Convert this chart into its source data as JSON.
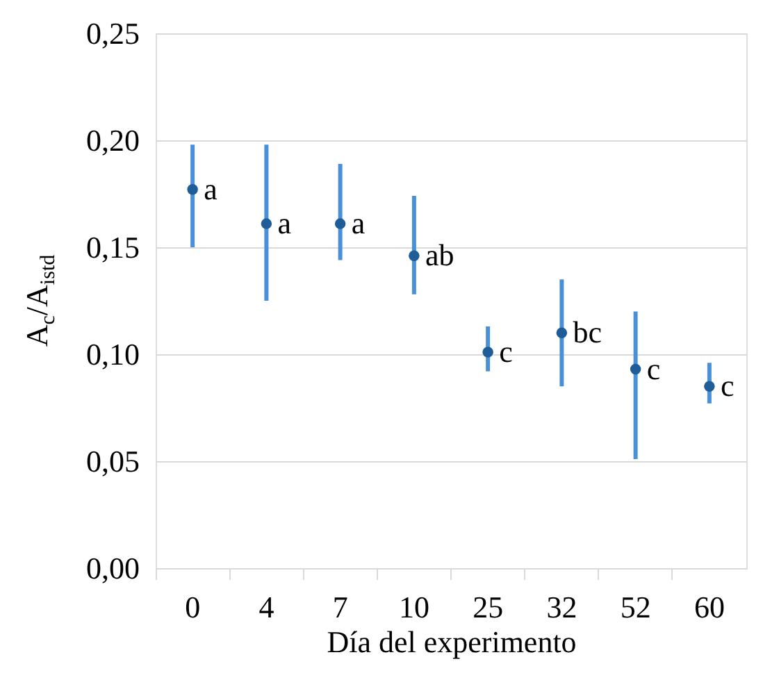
{
  "chart_data": {
    "type": "scatter",
    "xlabel": "Día del experimento",
    "ylabel": "A$_{c}$/A$_{istd}$",
    "categories": [
      "0",
      "4",
      "7",
      "10",
      "25",
      "32",
      "52",
      "60"
    ],
    "series": [
      {
        "color": "#1f5d99",
        "values": [
          0.177,
          0.161,
          0.161,
          0.146,
          0.101,
          0.11,
          0.093,
          0.085
        ],
        "errors": [
          [
            0.15,
            0.198
          ],
          [
            0.125,
            0.198
          ],
          [
            0.144,
            0.189
          ],
          [
            0.128,
            0.174
          ],
          [
            0.092,
            0.113
          ],
          [
            0.085,
            0.135
          ],
          [
            0.051,
            0.12
          ],
          [
            0.077,
            0.096
          ]
        ]
      }
    ],
    "ylim": [
      0,
      0.25
    ],
    "yticks": [
      {
        "value": 0,
        "label": "0,00"
      },
      {
        "value": 0.05,
        "label": "0,05"
      },
      {
        "value": 0.1,
        "label": "0,10"
      },
      {
        "value": 0.15,
        "label": "0,15"
      },
      {
        "value": 0.2,
        "label": "0,20"
      },
      {
        "value": 0.25,
        "label": "0,25"
      }
    ],
    "grid": "y",
    "marker": "circle",
    "annotations": [
      {
        "text": "a",
        "x": "0",
        "y": 0.177
      },
      {
        "text": "a",
        "x": "4",
        "y": 0.161
      },
      {
        "text": "a",
        "x": "7",
        "y": 0.161
      },
      {
        "text": "ab",
        "x": "10",
        "y": 0.146
      },
      {
        "text": "c",
        "x": "25",
        "y": 0.101
      },
      {
        "text": "bc",
        "x": "32",
        "y": 0.11
      },
      {
        "text": "c",
        "x": "52",
        "y": 0.093
      },
      {
        "text": "c",
        "x": "60",
        "y": 0.085
      }
    ]
  }
}
